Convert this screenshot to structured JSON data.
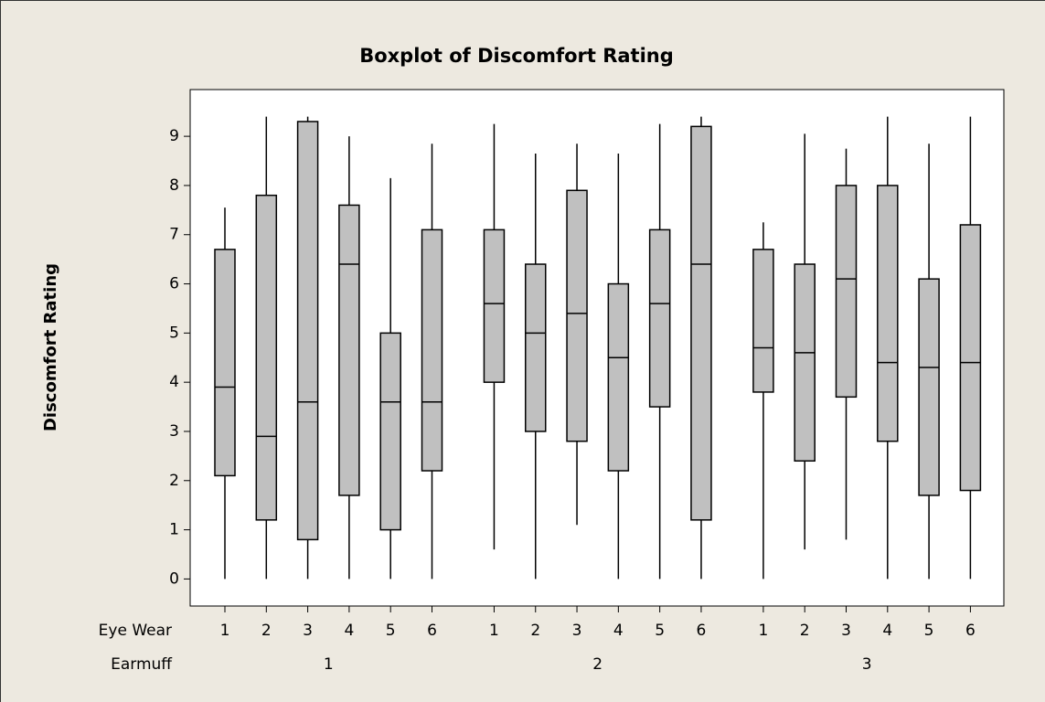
{
  "chart_data": {
    "type": "boxplot",
    "title": "Boxplot of Discomfort Rating",
    "y_label": "Discomfort Rating",
    "ylim": [
      -0.55,
      9.95
    ],
    "yticks": [
      0,
      1,
      2,
      3,
      4,
      5,
      6,
      7,
      8,
      9
    ],
    "grid": false,
    "box_color": "#c0c0c0",
    "row_labels": [
      "Eye Wear",
      "Earmuff"
    ],
    "groups": [
      {
        "name": "1",
        "boxes": [
          {
            "label": "1",
            "whisker_low": 0,
            "q1": 2.1,
            "median": 3.9,
            "q3": 6.7,
            "whisker_high": 7.55
          },
          {
            "label": "2",
            "whisker_low": 0,
            "q1": 1.2,
            "median": 2.9,
            "q3": 7.8,
            "whisker_high": 9.4
          },
          {
            "label": "3",
            "whisker_low": 0,
            "q1": 0.8,
            "median": 3.6,
            "q3": 9.3,
            "whisker_high": 9.4
          },
          {
            "label": "4",
            "whisker_low": 0,
            "q1": 1.7,
            "median": 6.4,
            "q3": 7.6,
            "whisker_high": 9.0
          },
          {
            "label": "5",
            "whisker_low": 0,
            "q1": 1.0,
            "median": 3.6,
            "q3": 5.0,
            "whisker_high": 8.15
          },
          {
            "label": "6",
            "whisker_low": 0,
            "q1": 2.2,
            "median": 3.6,
            "q3": 7.1,
            "whisker_high": 8.85
          }
        ]
      },
      {
        "name": "2",
        "boxes": [
          {
            "label": "1",
            "whisker_low": 0.6,
            "q1": 4.0,
            "median": 5.6,
            "q3": 7.1,
            "whisker_high": 9.25
          },
          {
            "label": "2",
            "whisker_low": 0,
            "q1": 3.0,
            "median": 5.0,
            "q3": 6.4,
            "whisker_high": 8.65
          },
          {
            "label": "3",
            "whisker_low": 1.1,
            "q1": 2.8,
            "median": 5.4,
            "q3": 7.9,
            "whisker_high": 8.85
          },
          {
            "label": "4",
            "whisker_low": 0,
            "q1": 2.2,
            "median": 4.5,
            "q3": 6.0,
            "whisker_high": 8.65
          },
          {
            "label": "5",
            "whisker_low": 0,
            "q1": 3.5,
            "median": 5.6,
            "q3": 7.1,
            "whisker_high": 9.25
          },
          {
            "label": "6",
            "whisker_low": 0,
            "q1": 1.2,
            "median": 6.4,
            "q3": 9.2,
            "whisker_high": 9.4
          }
        ]
      },
      {
        "name": "3",
        "boxes": [
          {
            "label": "1",
            "whisker_low": 0,
            "q1": 3.8,
            "median": 4.7,
            "q3": 6.7,
            "whisker_high": 7.25
          },
          {
            "label": "2",
            "whisker_low": 0.6,
            "q1": 2.4,
            "median": 4.6,
            "q3": 6.4,
            "whisker_high": 9.05
          },
          {
            "label": "3",
            "whisker_low": 0.8,
            "q1": 3.7,
            "median": 6.1,
            "q3": 8.0,
            "whisker_high": 8.75
          },
          {
            "label": "4",
            "whisker_low": 0,
            "q1": 2.8,
            "median": 4.4,
            "q3": 8.0,
            "whisker_high": 9.4
          },
          {
            "label": "5",
            "whisker_low": 0,
            "q1": 1.7,
            "median": 4.3,
            "q3": 6.1,
            "whisker_high": 8.85
          },
          {
            "label": "6",
            "whisker_low": 0,
            "q1": 1.8,
            "median": 4.4,
            "q3": 7.2,
            "whisker_high": 9.4
          }
        ]
      }
    ]
  }
}
